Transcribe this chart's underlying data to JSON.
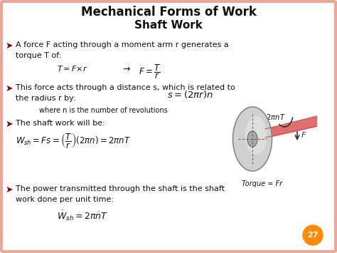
{
  "title1": "Mechanical Forms of Work",
  "title2": "Shaft Work",
  "bg_color": "#FFFFFF",
  "border_color": "#E8A898",
  "title_color": "#111111",
  "text_color": "#111111",
  "bullet_color": "#8B0000",
  "page_num": "27",
  "page_num_color": "#FF8C00",
  "shaft_color": "#E07070",
  "disk_color": "#C8C8C8",
  "disk_edge_color": "#999999"
}
